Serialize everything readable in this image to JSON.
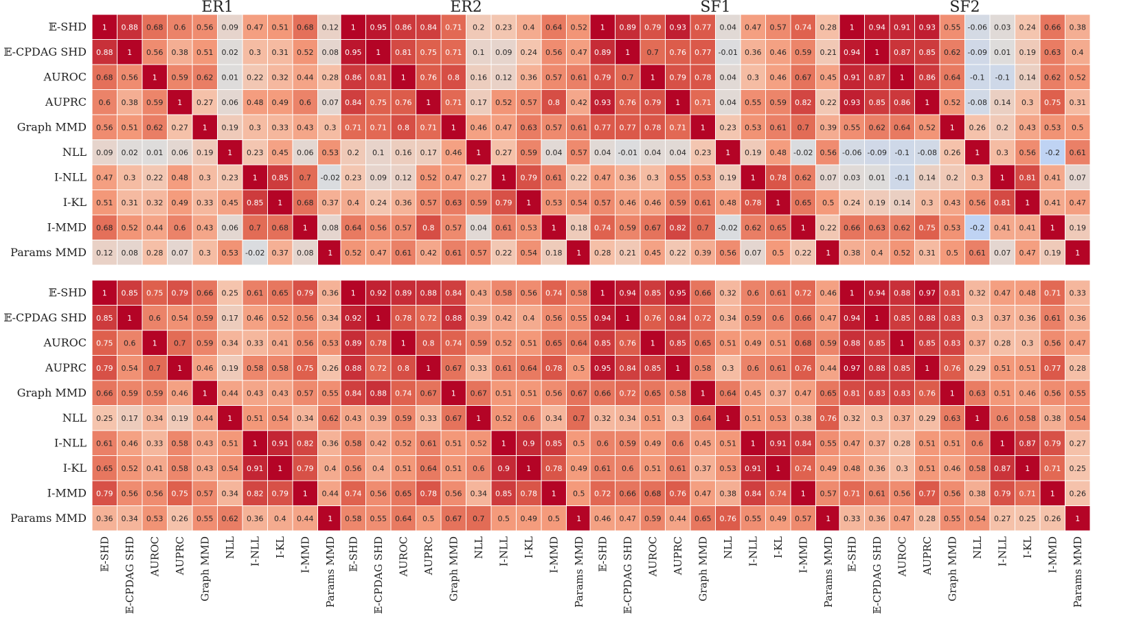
{
  "chart_data": {
    "type": "heatmap",
    "metrics": [
      "𝔼-SHD",
      "𝔼-CPDAG SHD",
      "AUROC",
      "AUPRC",
      "Graph MMD",
      "NLL",
      "I-NLL",
      "I-KL",
      "I-MMD",
      "Params MMD"
    ],
    "colormap": "coolwarm",
    "vmin": -1,
    "vmax": 1,
    "panels": [
      {
        "title": "ER1",
        "row": 0,
        "values": [
          [
            1,
            0.88,
            0.68,
            0.6,
            0.56,
            0.09,
            0.47,
            0.51,
            0.68,
            0.12
          ],
          [
            0.88,
            1,
            0.56,
            0.38,
            0.51,
            0.02,
            0.3,
            0.31,
            0.52,
            0.08
          ],
          [
            0.68,
            0.56,
            1,
            0.59,
            0.62,
            0.01,
            0.22,
            0.32,
            0.44,
            0.28
          ],
          [
            0.6,
            0.38,
            0.59,
            1,
            0.27,
            0.06,
            0.48,
            0.49,
            0.6,
            0.07
          ],
          [
            0.56,
            0.51,
            0.62,
            0.27,
            1,
            0.19,
            0.3,
            0.33,
            0.43,
            0.3
          ],
          [
            0.09,
            0.02,
            0.01,
            0.06,
            0.19,
            1,
            0.23,
            0.45,
            0.06,
            0.53
          ],
          [
            0.47,
            0.3,
            0.22,
            0.48,
            0.3,
            0.23,
            1,
            0.85,
            0.7,
            -0.02
          ],
          [
            0.51,
            0.31,
            0.32,
            0.49,
            0.33,
            0.45,
            0.85,
            1,
            0.68,
            0.37
          ],
          [
            0.68,
            0.52,
            0.44,
            0.6,
            0.43,
            0.06,
            0.7,
            0.68,
            1,
            0.08
          ],
          [
            0.12,
            0.08,
            0.28,
            0.07,
            0.3,
            0.53,
            -0.02,
            0.37,
            0.08,
            1
          ]
        ]
      },
      {
        "title": "ER2",
        "row": 0,
        "values": [
          [
            1,
            0.95,
            0.86,
            0.84,
            0.71,
            0.2,
            0.23,
            0.4,
            0.64,
            0.52
          ],
          [
            0.95,
            1,
            0.81,
            0.75,
            0.71,
            0.1,
            0.09,
            0.24,
            0.56,
            0.47
          ],
          [
            0.86,
            0.81,
            1,
            0.76,
            0.8,
            0.16,
            0.12,
            0.36,
            0.57,
            0.61
          ],
          [
            0.84,
            0.75,
            0.76,
            1,
            0.71,
            0.17,
            0.52,
            0.57,
            0.8,
            0.42
          ],
          [
            0.71,
            0.71,
            0.8,
            0.71,
            1,
            0.46,
            0.47,
            0.63,
            0.57,
            0.61
          ],
          [
            0.2,
            0.1,
            0.16,
            0.17,
            0.46,
            1,
            0.27,
            0.59,
            0.04,
            0.57
          ],
          [
            0.23,
            0.09,
            0.12,
            0.52,
            0.47,
            0.27,
            1,
            0.79,
            0.61,
            0.22
          ],
          [
            0.4,
            0.24,
            0.36,
            0.57,
            0.63,
            0.59,
            0.79,
            1,
            0.53,
            0.54
          ],
          [
            0.64,
            0.56,
            0.57,
            0.8,
            0.57,
            0.04,
            0.61,
            0.53,
            1,
            0.18
          ],
          [
            0.52,
            0.47,
            0.61,
            0.42,
            0.61,
            0.57,
            0.22,
            0.54,
            0.18,
            1
          ]
        ]
      },
      {
        "title": "SF1",
        "row": 0,
        "values": [
          [
            1,
            0.89,
            0.79,
            0.93,
            0.77,
            0.04,
            0.47,
            0.57,
            0.74,
            0.28
          ],
          [
            0.89,
            1,
            0.7,
            0.76,
            0.77,
            -0.01,
            0.36,
            0.46,
            0.59,
            0.21
          ],
          [
            0.79,
            0.7,
            1,
            0.79,
            0.78,
            0.04,
            0.3,
            0.46,
            0.67,
            0.45
          ],
          [
            0.93,
            0.76,
            0.79,
            1,
            0.71,
            0.04,
            0.55,
            0.59,
            0.82,
            0.22
          ],
          [
            0.77,
            0.77,
            0.78,
            0.71,
            1,
            0.23,
            0.53,
            0.61,
            0.7,
            0.39
          ],
          [
            0.04,
            -0.01,
            0.04,
            0.04,
            0.23,
            1,
            0.19,
            0.48,
            -0.02,
            0.56
          ],
          [
            0.47,
            0.36,
            0.3,
            0.55,
            0.53,
            0.19,
            1,
            0.78,
            0.62,
            0.07
          ],
          [
            0.57,
            0.46,
            0.46,
            0.59,
            0.61,
            0.48,
            0.78,
            1,
            0.65,
            0.5
          ],
          [
            0.74,
            0.59,
            0.67,
            0.82,
            0.7,
            -0.02,
            0.62,
            0.65,
            1,
            0.22
          ],
          [
            0.28,
            0.21,
            0.45,
            0.22,
            0.39,
            0.56,
            0.07,
            0.5,
            0.22,
            1
          ]
        ]
      },
      {
        "title": "SF2",
        "row": 0,
        "values": [
          [
            1,
            0.94,
            0.91,
            0.93,
            0.55,
            -0.06,
            0.03,
            0.24,
            0.66,
            0.38
          ],
          [
            0.94,
            1,
            0.87,
            0.85,
            0.62,
            -0.09,
            0.01,
            0.19,
            0.63,
            0.4
          ],
          [
            0.91,
            0.87,
            1,
            0.86,
            0.64,
            -0.1,
            -0.1,
            0.14,
            0.62,
            0.52
          ],
          [
            0.93,
            0.85,
            0.86,
            1,
            0.52,
            -0.08,
            0.14,
            0.3,
            0.75,
            0.31
          ],
          [
            0.55,
            0.62,
            0.64,
            0.52,
            1,
            0.26,
            0.2,
            0.43,
            0.53,
            0.5
          ],
          [
            -0.06,
            -0.09,
            -0.1,
            -0.08,
            0.26,
            1,
            0.3,
            0.56,
            -0.2,
            0.61
          ],
          [
            0.03,
            0.01,
            -0.1,
            0.14,
            0.2,
            0.3,
            1,
            0.81,
            0.41,
            0.07
          ],
          [
            0.24,
            0.19,
            0.14,
            0.3,
            0.43,
            0.56,
            0.81,
            1,
            0.41,
            0.47
          ],
          [
            0.66,
            0.63,
            0.62,
            0.75,
            0.53,
            -0.2,
            0.41,
            0.41,
            1,
            0.19
          ],
          [
            0.38,
            0.4,
            0.52,
            0.31,
            0.5,
            0.61,
            0.07,
            0.47,
            0.19,
            1
          ]
        ]
      },
      {
        "title": "",
        "row": 1,
        "values": [
          [
            1,
            0.85,
            0.75,
            0.79,
            0.66,
            0.25,
            0.61,
            0.65,
            0.79,
            0.36
          ],
          [
            0.85,
            1,
            0.6,
            0.54,
            0.59,
            0.17,
            0.46,
            0.52,
            0.56,
            0.34
          ],
          [
            0.75,
            0.6,
            1,
            0.7,
            0.59,
            0.34,
            0.33,
            0.41,
            0.56,
            0.53
          ],
          [
            0.79,
            0.54,
            0.7,
            1,
            0.46,
            0.19,
            0.58,
            0.58,
            0.75,
            0.26
          ],
          [
            0.66,
            0.59,
            0.59,
            0.46,
            1,
            0.44,
            0.43,
            0.43,
            0.57,
            0.55
          ],
          [
            0.25,
            0.17,
            0.34,
            0.19,
            0.44,
            1,
            0.51,
            0.54,
            0.34,
            0.62
          ],
          [
            0.61,
            0.46,
            0.33,
            0.58,
            0.43,
            0.51,
            1,
            0.91,
            0.82,
            0.36
          ],
          [
            0.65,
            0.52,
            0.41,
            0.58,
            0.43,
            0.54,
            0.91,
            1,
            0.79,
            0.4
          ],
          [
            0.79,
            0.56,
            0.56,
            0.75,
            0.57,
            0.34,
            0.82,
            0.79,
            1,
            0.44
          ],
          [
            0.36,
            0.34,
            0.53,
            0.26,
            0.55,
            0.62,
            0.36,
            0.4,
            0.44,
            1
          ]
        ]
      },
      {
        "title": "",
        "row": 1,
        "values": [
          [
            1,
            0.92,
            0.89,
            0.88,
            0.84,
            0.43,
            0.58,
            0.56,
            0.74,
            0.58
          ],
          [
            0.92,
            1,
            0.78,
            0.72,
            0.88,
            0.39,
            0.42,
            0.4,
            0.56,
            0.55
          ],
          [
            0.89,
            0.78,
            1,
            0.8,
            0.74,
            0.59,
            0.52,
            0.51,
            0.65,
            0.64
          ],
          [
            0.88,
            0.72,
            0.8,
            1,
            0.67,
            0.33,
            0.61,
            0.64,
            0.78,
            0.5
          ],
          [
            0.84,
            0.88,
            0.74,
            0.67,
            1,
            0.67,
            0.51,
            0.51,
            0.56,
            0.67
          ],
          [
            0.43,
            0.39,
            0.59,
            0.33,
            0.67,
            1,
            0.52,
            0.6,
            0.34,
            0.7
          ],
          [
            0.58,
            0.42,
            0.52,
            0.61,
            0.51,
            0.52,
            1,
            0.9,
            0.85,
            0.5
          ],
          [
            0.56,
            0.4,
            0.51,
            0.64,
            0.51,
            0.6,
            0.9,
            1,
            0.78,
            0.49
          ],
          [
            0.74,
            0.56,
            0.65,
            0.78,
            0.56,
            0.34,
            0.85,
            0.78,
            1,
            0.5
          ],
          [
            0.58,
            0.55,
            0.64,
            0.5,
            0.67,
            0.7,
            0.5,
            0.49,
            0.5,
            1
          ]
        ]
      },
      {
        "title": "",
        "row": 1,
        "values": [
          [
            1,
            0.94,
            0.85,
            0.95,
            0.66,
            0.32,
            0.6,
            0.61,
            0.72,
            0.46
          ],
          [
            0.94,
            1,
            0.76,
            0.84,
            0.72,
            0.34,
            0.59,
            0.6,
            0.66,
            0.47
          ],
          [
            0.85,
            0.76,
            1,
            0.85,
            0.65,
            0.51,
            0.49,
            0.51,
            0.68,
            0.59
          ],
          [
            0.95,
            0.84,
            0.85,
            1,
            0.58,
            0.3,
            0.6,
            0.61,
            0.76,
            0.44
          ],
          [
            0.66,
            0.72,
            0.65,
            0.58,
            1,
            0.64,
            0.45,
            0.37,
            0.47,
            0.65
          ],
          [
            0.32,
            0.34,
            0.51,
            0.3,
            0.64,
            1,
            0.51,
            0.53,
            0.38,
            0.76
          ],
          [
            0.6,
            0.59,
            0.49,
            0.6,
            0.45,
            0.51,
            1,
            0.91,
            0.84,
            0.55
          ],
          [
            0.61,
            0.6,
            0.51,
            0.61,
            0.37,
            0.53,
            0.91,
            1,
            0.74,
            0.49
          ],
          [
            0.72,
            0.66,
            0.68,
            0.76,
            0.47,
            0.38,
            0.84,
            0.74,
            1,
            0.57
          ],
          [
            0.46,
            0.47,
            0.59,
            0.44,
            0.65,
            0.76,
            0.55,
            0.49,
            0.57,
            1
          ]
        ]
      },
      {
        "title": "",
        "row": 1,
        "values": [
          [
            1,
            0.94,
            0.88,
            0.97,
            0.81,
            0.32,
            0.47,
            0.48,
            0.71,
            0.33
          ],
          [
            0.94,
            1,
            0.85,
            0.88,
            0.83,
            0.3,
            0.37,
            0.36,
            0.61,
            0.36
          ],
          [
            0.88,
            0.85,
            1,
            0.85,
            0.83,
            0.37,
            0.28,
            0.3,
            0.56,
            0.47
          ],
          [
            0.97,
            0.88,
            0.85,
            1,
            0.76,
            0.29,
            0.51,
            0.51,
            0.77,
            0.28
          ],
          [
            0.81,
            0.83,
            0.83,
            0.76,
            1,
            0.63,
            0.51,
            0.46,
            0.56,
            0.55
          ],
          [
            0.32,
            0.3,
            0.37,
            0.29,
            0.63,
            1,
            0.6,
            0.58,
            0.38,
            0.54
          ],
          [
            0.47,
            0.37,
            0.28,
            0.51,
            0.51,
            0.6,
            1,
            0.87,
            0.79,
            0.27
          ],
          [
            0.48,
            0.36,
            0.3,
            0.51,
            0.46,
            0.58,
            0.87,
            1,
            0.71,
            0.25
          ],
          [
            0.71,
            0.61,
            0.56,
            0.77,
            0.56,
            0.38,
            0.79,
            0.71,
            1,
            0.26
          ],
          [
            0.33,
            0.36,
            0.47,
            0.28,
            0.55,
            0.54,
            0.27,
            0.25,
            0.26,
            1
          ]
        ]
      }
    ]
  }
}
